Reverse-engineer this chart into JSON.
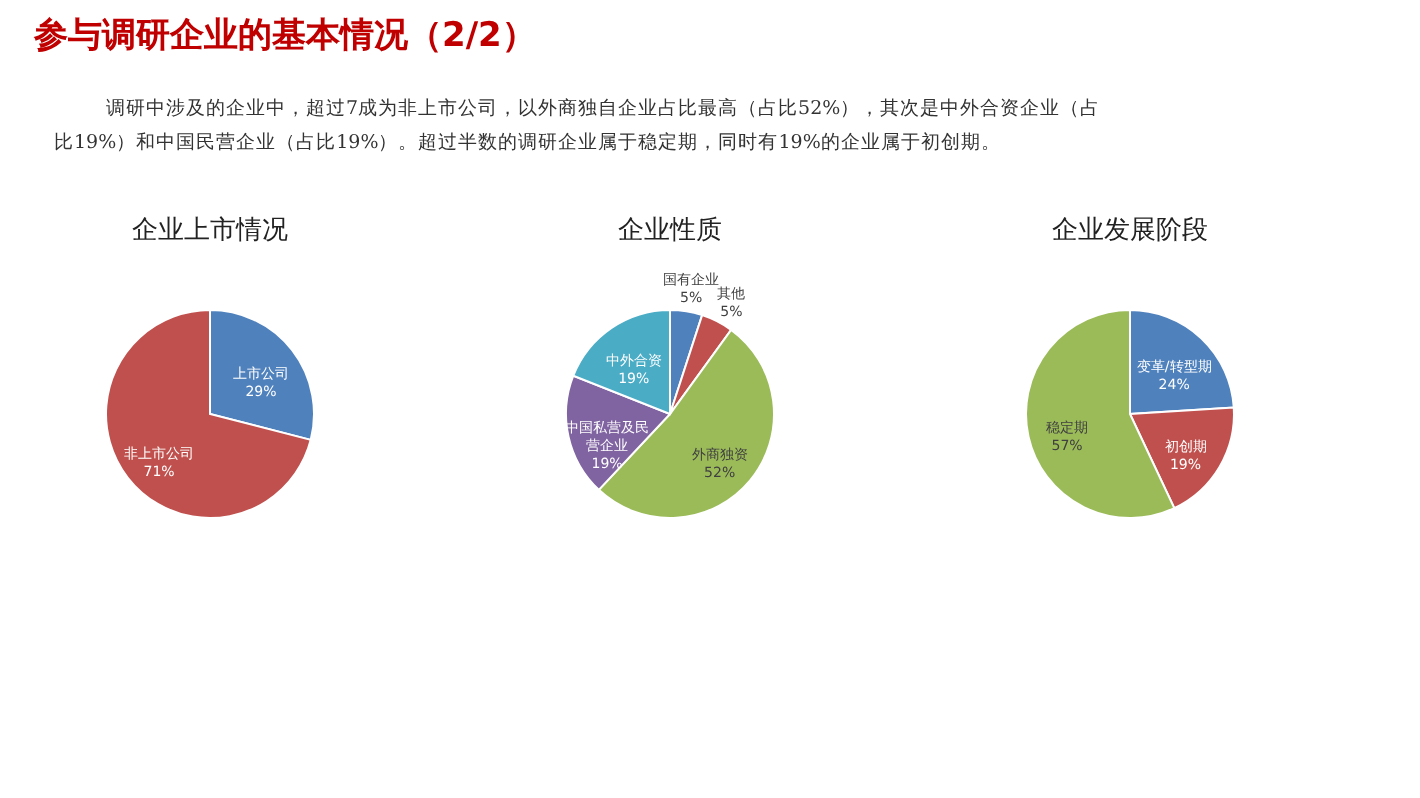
{
  "chart_data": [
    {
      "type": "pie",
      "title": "企业上市情况",
      "annotations": [
        "参与调研企业的基本情况（2/2）",
        "调研中涉及的企业中，超过7成为非上市公司，以外商独自企业占比最高（占比52%），其次是中外合资企业（占比19%）和中国民营企业（占比19%）。超过半数的调研企业属于稳定期，同时有19%的企业属于初创期。"
      ],
      "categories": [
        "上市公司",
        "非上市公司"
      ],
      "values": [
        29,
        71
      ],
      "value_labels": [
        "29%",
        "71%"
      ],
      "colors": [
        "#4f81bd",
        "#c0504d"
      ]
    },
    {
      "type": "pie",
      "title": "企业性质",
      "categories": [
        "国有企业",
        "其他",
        "外商独资",
        "中国私营及民营企业",
        "中外合资"
      ],
      "values": [
        5,
        5,
        52,
        19,
        19
      ],
      "value_labels": [
        "5%",
        "5%",
        "52%",
        "19%",
        "19%"
      ],
      "colors": [
        "#4f81bd",
        "#c0504d",
        "#9bbb59",
        "#8064a2",
        "#4bacc6"
      ]
    },
    {
      "type": "pie",
      "title": "企业发展阶段",
      "categories": [
        "变革/转型期",
        "初创期",
        "稳定期"
      ],
      "values": [
        24,
        19,
        57
      ],
      "value_labels": [
        "24%",
        "19%",
        "57%"
      ],
      "colors": [
        "#4f81bd",
        "#c0504d",
        "#9bbb59"
      ]
    }
  ]
}
